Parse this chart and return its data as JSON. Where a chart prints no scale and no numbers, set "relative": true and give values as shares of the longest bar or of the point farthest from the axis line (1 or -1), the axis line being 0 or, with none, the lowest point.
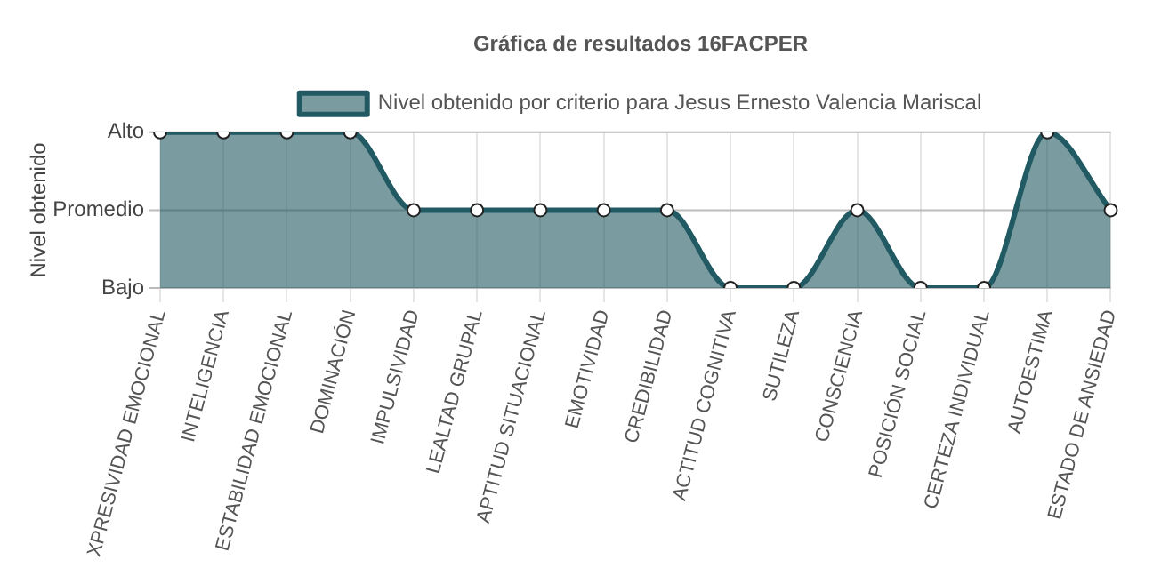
{
  "chart_data": {
    "type": "area",
    "title": "Gráfica de resultados 16FACPER",
    "ylabel": "Nivel obtenido",
    "relative": true,
    "categories": [
      "XPRESIVIDAD EMOCIONAL",
      "INTELIGENCIA",
      "ESTABILIDAD EMOCIONAL",
      "DOMINACIÓN",
      "IMPULSIVIDAD",
      "LEALTAD GRUPAL",
      "APTITUD SITUACIONAL",
      "EMOTIVIDAD",
      "CREDIBILIDAD",
      "ACTITUD COGNITIVA",
      "SUTILEZA",
      "CONSCIENCIA",
      "POSICIÓN SOCIAL",
      "CERTEZA INDIVIDUAL",
      "AUTOESTIMA",
      "ESTADO DE ANSIEDAD"
    ],
    "series": [
      {
        "name": "Nivel obtenido por criterio para Jesus Ernesto Valencia Mariscal",
        "color": "#215a63",
        "values": [
          1,
          1,
          1,
          1,
          0.5,
          0.5,
          0.5,
          0.5,
          0.5,
          0,
          0,
          0.5,
          0,
          0,
          1,
          0.5
        ]
      }
    ],
    "ref_lines": [
      {
        "axis": "y",
        "value": 0,
        "label": "Bajo"
      },
      {
        "axis": "y",
        "value": 0.5,
        "label": "Promedio"
      },
      {
        "axis": "y",
        "value": 1,
        "label": "Alto"
      }
    ],
    "grid": "x",
    "legend": "top",
    "marker": "circle",
    "line_style": "solid"
  }
}
